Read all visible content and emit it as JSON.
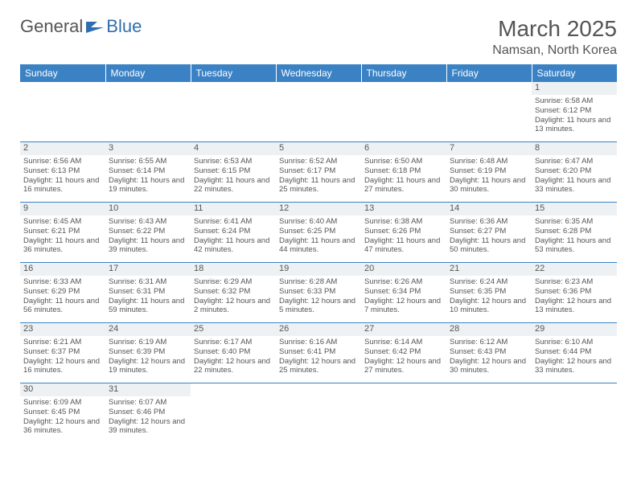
{
  "logo": {
    "text1": "General",
    "text2": "Blue"
  },
  "title": "March 2025",
  "location": "Namsan, North Korea",
  "daynames": [
    "Sunday",
    "Monday",
    "Tuesday",
    "Wednesday",
    "Thursday",
    "Friday",
    "Saturday"
  ],
  "colors": {
    "header_bg": "#3b82c4",
    "header_text": "#ffffff",
    "text": "#555555",
    "daynum_bg": "#eef1f3",
    "border": "#3b82c4"
  },
  "weeks": [
    [
      null,
      null,
      null,
      null,
      null,
      null,
      {
        "d": "1",
        "sr": "Sunrise: 6:58 AM",
        "ss": "Sunset: 6:12 PM",
        "dl": "Daylight: 11 hours and 13 minutes."
      }
    ],
    [
      {
        "d": "2",
        "sr": "Sunrise: 6:56 AM",
        "ss": "Sunset: 6:13 PM",
        "dl": "Daylight: 11 hours and 16 minutes."
      },
      {
        "d": "3",
        "sr": "Sunrise: 6:55 AM",
        "ss": "Sunset: 6:14 PM",
        "dl": "Daylight: 11 hours and 19 minutes."
      },
      {
        "d": "4",
        "sr": "Sunrise: 6:53 AM",
        "ss": "Sunset: 6:15 PM",
        "dl": "Daylight: 11 hours and 22 minutes."
      },
      {
        "d": "5",
        "sr": "Sunrise: 6:52 AM",
        "ss": "Sunset: 6:17 PM",
        "dl": "Daylight: 11 hours and 25 minutes."
      },
      {
        "d": "6",
        "sr": "Sunrise: 6:50 AM",
        "ss": "Sunset: 6:18 PM",
        "dl": "Daylight: 11 hours and 27 minutes."
      },
      {
        "d": "7",
        "sr": "Sunrise: 6:48 AM",
        "ss": "Sunset: 6:19 PM",
        "dl": "Daylight: 11 hours and 30 minutes."
      },
      {
        "d": "8",
        "sr": "Sunrise: 6:47 AM",
        "ss": "Sunset: 6:20 PM",
        "dl": "Daylight: 11 hours and 33 minutes."
      }
    ],
    [
      {
        "d": "9",
        "sr": "Sunrise: 6:45 AM",
        "ss": "Sunset: 6:21 PM",
        "dl": "Daylight: 11 hours and 36 minutes."
      },
      {
        "d": "10",
        "sr": "Sunrise: 6:43 AM",
        "ss": "Sunset: 6:22 PM",
        "dl": "Daylight: 11 hours and 39 minutes."
      },
      {
        "d": "11",
        "sr": "Sunrise: 6:41 AM",
        "ss": "Sunset: 6:24 PM",
        "dl": "Daylight: 11 hours and 42 minutes."
      },
      {
        "d": "12",
        "sr": "Sunrise: 6:40 AM",
        "ss": "Sunset: 6:25 PM",
        "dl": "Daylight: 11 hours and 44 minutes."
      },
      {
        "d": "13",
        "sr": "Sunrise: 6:38 AM",
        "ss": "Sunset: 6:26 PM",
        "dl": "Daylight: 11 hours and 47 minutes."
      },
      {
        "d": "14",
        "sr": "Sunrise: 6:36 AM",
        "ss": "Sunset: 6:27 PM",
        "dl": "Daylight: 11 hours and 50 minutes."
      },
      {
        "d": "15",
        "sr": "Sunrise: 6:35 AM",
        "ss": "Sunset: 6:28 PM",
        "dl": "Daylight: 11 hours and 53 minutes."
      }
    ],
    [
      {
        "d": "16",
        "sr": "Sunrise: 6:33 AM",
        "ss": "Sunset: 6:29 PM",
        "dl": "Daylight: 11 hours and 56 minutes."
      },
      {
        "d": "17",
        "sr": "Sunrise: 6:31 AM",
        "ss": "Sunset: 6:31 PM",
        "dl": "Daylight: 11 hours and 59 minutes."
      },
      {
        "d": "18",
        "sr": "Sunrise: 6:29 AM",
        "ss": "Sunset: 6:32 PM",
        "dl": "Daylight: 12 hours and 2 minutes."
      },
      {
        "d": "19",
        "sr": "Sunrise: 6:28 AM",
        "ss": "Sunset: 6:33 PM",
        "dl": "Daylight: 12 hours and 5 minutes."
      },
      {
        "d": "20",
        "sr": "Sunrise: 6:26 AM",
        "ss": "Sunset: 6:34 PM",
        "dl": "Daylight: 12 hours and 7 minutes."
      },
      {
        "d": "21",
        "sr": "Sunrise: 6:24 AM",
        "ss": "Sunset: 6:35 PM",
        "dl": "Daylight: 12 hours and 10 minutes."
      },
      {
        "d": "22",
        "sr": "Sunrise: 6:23 AM",
        "ss": "Sunset: 6:36 PM",
        "dl": "Daylight: 12 hours and 13 minutes."
      }
    ],
    [
      {
        "d": "23",
        "sr": "Sunrise: 6:21 AM",
        "ss": "Sunset: 6:37 PM",
        "dl": "Daylight: 12 hours and 16 minutes."
      },
      {
        "d": "24",
        "sr": "Sunrise: 6:19 AM",
        "ss": "Sunset: 6:39 PM",
        "dl": "Daylight: 12 hours and 19 minutes."
      },
      {
        "d": "25",
        "sr": "Sunrise: 6:17 AM",
        "ss": "Sunset: 6:40 PM",
        "dl": "Daylight: 12 hours and 22 minutes."
      },
      {
        "d": "26",
        "sr": "Sunrise: 6:16 AM",
        "ss": "Sunset: 6:41 PM",
        "dl": "Daylight: 12 hours and 25 minutes."
      },
      {
        "d": "27",
        "sr": "Sunrise: 6:14 AM",
        "ss": "Sunset: 6:42 PM",
        "dl": "Daylight: 12 hours and 27 minutes."
      },
      {
        "d": "28",
        "sr": "Sunrise: 6:12 AM",
        "ss": "Sunset: 6:43 PM",
        "dl": "Daylight: 12 hours and 30 minutes."
      },
      {
        "d": "29",
        "sr": "Sunrise: 6:10 AM",
        "ss": "Sunset: 6:44 PM",
        "dl": "Daylight: 12 hours and 33 minutes."
      }
    ],
    [
      {
        "d": "30",
        "sr": "Sunrise: 6:09 AM",
        "ss": "Sunset: 6:45 PM",
        "dl": "Daylight: 12 hours and 36 minutes."
      },
      {
        "d": "31",
        "sr": "Sunrise: 6:07 AM",
        "ss": "Sunset: 6:46 PM",
        "dl": "Daylight: 12 hours and 39 minutes."
      },
      null,
      null,
      null,
      null,
      null
    ]
  ]
}
